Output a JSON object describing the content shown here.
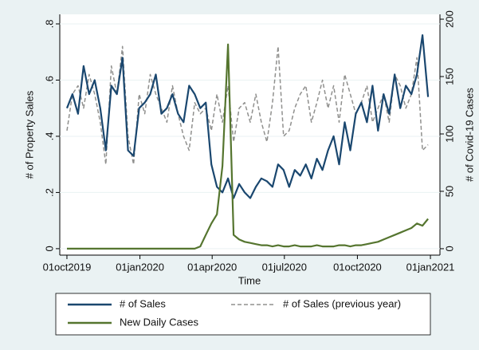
{
  "chart_data": {
    "type": "line",
    "x_label": "Time",
    "y_label": "# of Property Sales",
    "y2_label": "# of Covid-19 Cases",
    "x": [
      "2019-10-01",
      "2019-10-08",
      "2019-10-15",
      "2019-10-22",
      "2019-10-29",
      "2019-11-05",
      "2019-11-12",
      "2019-11-19",
      "2019-11-26",
      "2019-12-03",
      "2019-12-10",
      "2019-12-17",
      "2019-12-24",
      "2019-12-31",
      "2020-01-07",
      "2020-01-14",
      "2020-01-21",
      "2020-01-28",
      "2020-02-04",
      "2020-02-11",
      "2020-02-18",
      "2020-02-25",
      "2020-03-03",
      "2020-03-10",
      "2020-03-17",
      "2020-03-24",
      "2020-03-31",
      "2020-04-07",
      "2020-04-14",
      "2020-04-21",
      "2020-04-28",
      "2020-05-05",
      "2020-05-12",
      "2020-05-19",
      "2020-05-26",
      "2020-06-02",
      "2020-06-09",
      "2020-06-16",
      "2020-06-23",
      "2020-06-30",
      "2020-07-07",
      "2020-07-14",
      "2020-07-21",
      "2020-07-28",
      "2020-08-04",
      "2020-08-11",
      "2020-08-18",
      "2020-08-25",
      "2020-09-01",
      "2020-09-08",
      "2020-09-15",
      "2020-09-22",
      "2020-09-29",
      "2020-10-06",
      "2020-10-13",
      "2020-10-20",
      "2020-10-27",
      "2020-11-03",
      "2020-11-10",
      "2020-11-17",
      "2020-11-24",
      "2020-12-01",
      "2020-12-08",
      "2020-12-15",
      "2020-12-22",
      "2020-12-29"
    ],
    "series": [
      {
        "name": "# of Sales",
        "color": "#1a476f",
        "dash": false,
        "values": [
          0.5,
          0.55,
          0.48,
          0.65,
          0.55,
          0.6,
          0.5,
          0.35,
          0.58,
          0.55,
          0.68,
          0.35,
          0.33,
          0.5,
          0.52,
          0.55,
          0.62,
          0.48,
          0.5,
          0.55,
          0.48,
          0.45,
          0.58,
          0.55,
          0.5,
          0.52,
          0.3,
          0.22,
          0.2,
          0.25,
          0.18,
          0.23,
          0.2,
          0.18,
          0.22,
          0.25,
          0.24,
          0.22,
          0.3,
          0.28,
          0.22,
          0.28,
          0.26,
          0.3,
          0.25,
          0.32,
          0.28,
          0.35,
          0.4,
          0.3,
          0.45,
          0.35,
          0.48,
          0.52,
          0.45,
          0.58,
          0.42,
          0.55,
          0.48,
          0.62,
          0.5,
          0.58,
          0.55,
          0.62,
          0.76,
          0.54
        ]
      },
      {
        "name": "# of Sales (previous year)",
        "color": "#90908e",
        "dash": true,
        "values": [
          0.42,
          0.55,
          0.58,
          0.5,
          0.62,
          0.55,
          0.45,
          0.3,
          0.65,
          0.55,
          0.72,
          0.4,
          0.3,
          0.55,
          0.48,
          0.62,
          0.55,
          0.5,
          0.45,
          0.58,
          0.48,
          0.4,
          0.35,
          0.52,
          0.48,
          0.5,
          0.42,
          0.55,
          0.45,
          0.58,
          0.38,
          0.5,
          0.52,
          0.45,
          0.55,
          0.45,
          0.38,
          0.52,
          0.72,
          0.4,
          0.42,
          0.5,
          0.55,
          0.58,
          0.45,
          0.52,
          0.6,
          0.5,
          0.58,
          0.45,
          0.62,
          0.55,
          0.48,
          0.52,
          0.58,
          0.45,
          0.5,
          0.55,
          0.45,
          0.62,
          0.58,
          0.5,
          0.55,
          0.68,
          0.35,
          0.37
        ]
      },
      {
        "name": "New Daily Cases",
        "color": "#55752f",
        "dash": false,
        "axis": "y2",
        "values": [
          0,
          0,
          0,
          0,
          0,
          0,
          0,
          0,
          0,
          0,
          0,
          0,
          0,
          0,
          0,
          0,
          0,
          0,
          0,
          0,
          0,
          0,
          0,
          0,
          2,
          12,
          22,
          30,
          72,
          178,
          12,
          8,
          6,
          5,
          4,
          3,
          3,
          2,
          3,
          2,
          2,
          3,
          2,
          2,
          2,
          3,
          2,
          2,
          2,
          3,
          3,
          2,
          3,
          3,
          4,
          5,
          6,
          8,
          10,
          12,
          14,
          16,
          18,
          22,
          20,
          26
        ]
      }
    ],
    "xlim": [
      "2019-09-22",
      "2021-01-13"
    ],
    "xticks": [
      {
        "value": "2019-10-01",
        "label": "01oct2019"
      },
      {
        "value": "2020-01-01",
        "label": "01jan2020"
      },
      {
        "value": "2020-04-01",
        "label": "01apr2020"
      },
      {
        "value": "2020-07-01",
        "label": "01jul2020"
      },
      {
        "value": "2020-10-01",
        "label": "01oct2020"
      },
      {
        "value": "2021-01-01",
        "label": "01jan2021"
      }
    ],
    "ylim": [
      -0.023,
      0.834
    ],
    "yticks": [
      0,
      {
        "value": 0.2,
        "label": ".2"
      },
      {
        "value": 0.4,
        "label": ".4"
      },
      {
        "value": 0.6,
        "label": ".6"
      },
      {
        "value": 0.8,
        "label": ".8"
      }
    ],
    "y2lim": [
      -5.6,
      204.2
    ],
    "y2ticks": [
      0,
      50,
      100,
      150,
      200
    ],
    "grid": true,
    "legend": "bottom"
  }
}
